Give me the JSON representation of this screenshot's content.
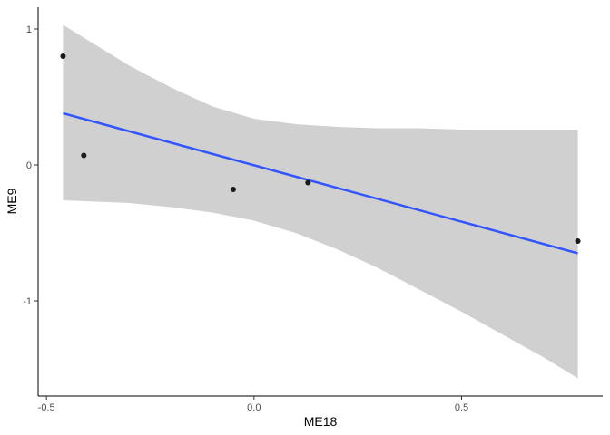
{
  "chart_data": {
    "type": "scatter",
    "title": "",
    "xlabel": "ME18",
    "ylabel": "ME9",
    "xlim": [
      -0.52,
      0.84
    ],
    "ylim": [
      -1.7,
      1.16
    ],
    "x_ticks": [
      -0.5,
      0.0,
      0.5
    ],
    "x_tick_labels": [
      "-0.5",
      "0.0",
      "0.5"
    ],
    "y_ticks": [
      -1,
      0,
      1
    ],
    "y_tick_labels": [
      "-1",
      "0",
      "1"
    ],
    "grid": false,
    "legend": "none",
    "points": [
      {
        "x": -0.46,
        "y": 0.8
      },
      {
        "x": -0.41,
        "y": 0.07
      },
      {
        "x": -0.05,
        "y": -0.18
      },
      {
        "x": 0.13,
        "y": -0.13
      },
      {
        "x": 0.78,
        "y": -0.56
      }
    ],
    "fit_line": {
      "x": [
        -0.46,
        0.78
      ],
      "y": [
        0.38,
        -0.65
      ]
    },
    "confidence_band": [
      {
        "x": -0.46,
        "lower": -0.26,
        "upper": 1.03
      },
      {
        "x": -0.3,
        "lower": -0.28,
        "upper": 0.73
      },
      {
        "x": -0.2,
        "lower": -0.31,
        "upper": 0.57
      },
      {
        "x": -0.1,
        "lower": -0.35,
        "upper": 0.43
      },
      {
        "x": 0.0,
        "lower": -0.41,
        "upper": 0.34
      },
      {
        "x": 0.1,
        "lower": -0.5,
        "upper": 0.3
      },
      {
        "x": 0.2,
        "lower": -0.62,
        "upper": 0.28
      },
      {
        "x": 0.3,
        "lower": -0.76,
        "upper": 0.27
      },
      {
        "x": 0.4,
        "lower": -0.92,
        "upper": 0.27
      },
      {
        "x": 0.5,
        "lower": -1.08,
        "upper": 0.26
      },
      {
        "x": 0.6,
        "lower": -1.25,
        "upper": 0.26
      },
      {
        "x": 0.7,
        "lower": -1.42,
        "upper": 0.26
      },
      {
        "x": 0.78,
        "lower": -1.57,
        "upper": 0.26
      }
    ],
    "colors": {
      "point": "#1a1a1a",
      "line": "#3355ff",
      "band": "#d0d0d0",
      "axis": "#000000"
    }
  }
}
